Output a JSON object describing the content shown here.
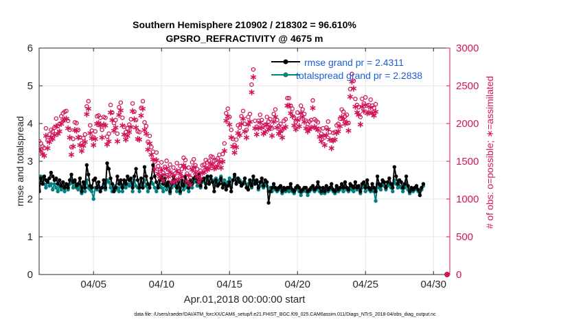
{
  "chart_data": {
    "type": "line",
    "title": "Southern Hemisphere 210902 / 218302 = 96.610%",
    "subtitle": "GPSRO_REFRACTIVITY @ 4675 m",
    "xlabel": "Apr.01,2018 00:00:00 start",
    "ylabel": "rmse and totalspread",
    "y2label": "# of obs: o=possible; ∗=assimilated",
    "footer": "data file: /Users/raeder/DAI/ATM_forcXX/CAM6_setup/f.e21.FHIST_BGC.f09_025.CAM6assim.011/Diags_NTrS_2018-04/obs_diag_output.nc",
    "xlim": [
      1.0,
      31.2
    ],
    "ylim": [
      0,
      6
    ],
    "y2lim": [
      0,
      3000
    ],
    "xticks": [
      5,
      10,
      15,
      20,
      25,
      30
    ],
    "xtick_labels": [
      "04/05",
      "04/10",
      "04/15",
      "04/20",
      "04/25",
      "04/30"
    ],
    "yticks": [
      0,
      1,
      2,
      3,
      4,
      5,
      6
    ],
    "y2ticks": [
      0,
      500,
      1000,
      1500,
      2000,
      2500,
      3000
    ],
    "grid": true,
    "legend_position": "top-right",
    "x_step_days": 0.125,
    "colors": {
      "rmse": "#000000",
      "spread": "#008080",
      "obs": "#d4145a"
    },
    "series": [
      {
        "name": "rmse grand pr = 2.4311",
        "kind": "rmse",
        "axis": "left",
        "x_start": 1.0,
        "values": [
          2.2,
          2.55,
          2.4,
          2.6,
          2.5,
          2.45,
          2.55,
          2.7,
          2.6,
          2.5,
          2.55,
          2.4,
          2.5,
          2.35,
          2.45,
          2.3,
          2.4,
          2.3,
          2.5,
          2.65,
          2.45,
          2.5,
          2.35,
          2.4,
          2.55,
          2.2,
          2.45,
          2.3,
          2.9,
          2.65,
          2.35,
          2.3,
          2.5,
          2.55,
          2.3,
          2.45,
          2.2,
          2.3,
          2.5,
          2.3,
          2.95,
          2.8,
          2.55,
          2.4,
          2.2,
          2.3,
          2.6,
          2.4,
          2.5,
          2.3,
          2.5,
          2.4,
          2.6,
          2.5,
          2.55,
          2.3,
          2.6,
          2.8,
          2.5,
          2.3,
          2.55,
          2.3,
          2.85,
          2.6,
          2.4,
          2.3,
          2.55,
          2.9,
          2.6,
          2.45,
          2.3,
          2.5,
          2.6,
          2.4,
          2.55,
          2.35,
          2.45,
          2.2,
          2.4,
          2.6,
          2.5,
          2.3,
          2.45,
          2.2,
          2.5,
          2.35,
          2.6,
          2.45,
          2.3,
          2.5,
          2.4,
          2.55,
          2.6,
          2.45,
          2.65,
          2.35,
          2.5,
          2.55,
          2.3,
          2.6,
          2.4,
          2.6,
          2.45,
          2.2,
          2.5,
          2.35,
          2.4,
          2.55,
          2.3,
          2.4,
          2.25,
          2.35,
          2.45,
          2.2,
          2.5,
          2.65,
          2.4,
          2.55,
          2.45,
          2.35,
          2.4,
          2.55,
          2.3,
          2.25,
          2.5,
          2.35,
          2.6,
          2.4,
          2.5,
          2.3,
          2.45,
          2.55,
          2.35,
          2.5,
          2.45,
          1.9,
          2.2,
          2.3,
          2.4,
          2.3,
          2.25,
          2.3,
          2.35,
          2.2,
          2.3,
          2.25,
          2.3,
          2.3,
          2.4,
          2.25,
          2.2,
          2.3,
          2.35,
          2.3,
          2.2,
          2.25,
          2.3,
          2.3,
          2.2,
          2.25,
          2.3,
          2.35,
          2.25,
          2.3,
          2.45,
          2.3,
          2.2,
          2.3,
          2.2,
          2.35,
          2.25,
          2.3,
          2.4,
          2.25,
          2.2,
          2.35,
          2.25,
          2.3,
          2.4,
          2.3,
          2.45,
          2.3,
          2.25,
          2.4,
          2.35,
          2.3,
          2.45,
          2.3,
          2.35,
          2.2,
          2.4,
          2.45,
          2.3,
          2.5,
          2.3,
          2.25,
          2.4,
          2.3,
          2.2,
          2.6,
          2.4,
          2.35,
          2.5,
          2.45,
          2.3,
          2.45,
          2.55,
          2.4,
          2.3,
          2.85,
          2.6,
          2.4,
          2.5,
          2.45,
          2.3,
          2.4,
          2.6,
          2.35,
          2.2,
          2.3,
          2.25,
          2.3,
          2.35,
          2.25,
          2.1,
          2.3,
          2.4
        ]
      },
      {
        "name": "totalspread grand pr = 2.2838",
        "kind": "spread",
        "axis": "left",
        "x_start": 1.0,
        "values": [
          2.25,
          2.6,
          2.55,
          2.4,
          2.3,
          2.5,
          2.35,
          2.4,
          2.25,
          2.4,
          2.3,
          2.2,
          2.35,
          2.25,
          2.3,
          2.2,
          2.35,
          2.25,
          2.4,
          2.5,
          2.3,
          2.45,
          2.3,
          2.25,
          2.35,
          2.15,
          2.3,
          2.2,
          2.5,
          2.3,
          2.25,
          2.2,
          2.0,
          2.3,
          2.25,
          2.35,
          2.2,
          2.3,
          2.4,
          2.25,
          2.5,
          2.45,
          2.3,
          2.2,
          2.35,
          2.25,
          2.3,
          2.2,
          2.4,
          2.2,
          2.35,
          2.3,
          2.4,
          2.35,
          2.45,
          2.2,
          2.5,
          2.35,
          2.3,
          2.2,
          2.4,
          2.3,
          2.5,
          2.35,
          2.2,
          2.3,
          2.45,
          2.4,
          2.3,
          2.2,
          2.35,
          2.4,
          2.3,
          2.2,
          2.4,
          2.25,
          2.35,
          2.15,
          2.3,
          2.45,
          2.35,
          2.2,
          2.3,
          2.15,
          2.4,
          2.25,
          2.45,
          2.3,
          2.2,
          2.35,
          2.3,
          2.45,
          2.5,
          2.35,
          2.55,
          2.3,
          2.45,
          2.5,
          2.4,
          2.55,
          2.45,
          2.6,
          2.5,
          2.4,
          2.55,
          2.45,
          2.5,
          2.6,
          2.4,
          2.5,
          2.35,
          2.45,
          2.55,
          2.3,
          2.5,
          2.6,
          2.45,
          2.55,
          2.5,
          2.4,
          2.45,
          2.55,
          2.3,
          2.4,
          2.45,
          2.3,
          2.5,
          2.4,
          2.45,
          2.25,
          2.35,
          2.45,
          2.3,
          2.4,
          2.35,
          2.2,
          2.3,
          2.2,
          2.3,
          2.25,
          2.2,
          2.25,
          2.3,
          2.15,
          2.25,
          2.2,
          2.25,
          2.2,
          2.3,
          2.2,
          2.15,
          2.25,
          2.3,
          2.2,
          2.1,
          2.2,
          2.25,
          2.2,
          2.1,
          2.2,
          2.25,
          2.3,
          2.2,
          2.25,
          2.35,
          2.2,
          2.15,
          2.25,
          2.15,
          2.3,
          2.2,
          2.25,
          2.3,
          2.2,
          2.15,
          2.3,
          2.2,
          2.25,
          2.3,
          2.2,
          2.35,
          2.25,
          2.2,
          2.3,
          2.25,
          2.2,
          2.35,
          2.25,
          2.3,
          2.15,
          2.3,
          2.35,
          2.2,
          2.4,
          2.25,
          2.2,
          2.3,
          2.2,
          1.95,
          2.4,
          2.3,
          2.25,
          2.4,
          2.35,
          2.25,
          2.35,
          2.4,
          2.3,
          2.2,
          2.5,
          2.4,
          2.3,
          2.35,
          2.3,
          2.2,
          2.3,
          2.45,
          2.25,
          2.15,
          2.25,
          2.2,
          2.25,
          2.3,
          2.2,
          2.1,
          2.25,
          2.35
        ]
      },
      {
        "name": "possible",
        "kind": "possible",
        "axis": "right",
        "x_start": 1.0,
        "values": [
          1730,
          1700,
          1660,
          1640,
          1900,
          1740,
          1820,
          1880,
          1860,
          1910,
          2030,
          1930,
          1960,
          2060,
          2100,
          2120,
          2130,
          2000,
          1880,
          1650,
          1760,
          1980,
          1970,
          1880,
          1780,
          1700,
          1770,
          1820,
          2190,
          2260,
          1940,
          1870,
          1780,
          1860,
          2060,
          2070,
          2040,
          1880,
          2050,
          2040,
          1790,
          1830,
          2210,
          2110,
          1970,
          2010,
          1830,
          2180,
          2240,
          2040,
          1920,
          1850,
          1900,
          1950,
          2020,
          2230,
          2120,
          2010,
          1860,
          1850,
          2170,
          2260,
          1980,
          1930,
          1720,
          1800,
          1650,
          1590,
          1460,
          1580,
          1400,
          1360,
          1450,
          1310,
          1390,
          1470,
          1360,
          1420,
          1290,
          1380,
          1300,
          1440,
          1330,
          1400,
          1360,
          1510,
          1480,
          1300,
          1380,
          1250,
          1450,
          1490,
          1410,
          1360,
          1290,
          1340,
          1410,
          1420,
          1480,
          1450,
          1470,
          1530,
          1520,
          1470,
          1480,
          1500,
          1550,
          1480,
          1560,
          1700,
          2100,
          2160,
          2050,
          1880,
          1760,
          1680,
          1750,
          1940,
          1910,
          2060,
          2130,
          1960,
          1880,
          2050,
          2090,
          2480,
          2680,
          2000,
          1920,
          2000,
          2080,
          2010,
          1930,
          1950,
          2050,
          1990,
          2020,
          1900,
          2090,
          2150,
          2010,
          1930,
          1960,
          1880,
          2000,
          2020,
          2300,
          2300,
          2200,
          2160,
          2040,
          1990,
          2110,
          2030,
          2200,
          2150,
          2090,
          2000,
          1960,
          1990,
          2010,
          2270,
          2020,
          2000,
          1980,
          1890,
          1830,
          1900,
          1780,
          1910,
          1990,
          1850,
          1740,
          1840,
          1850,
          1940,
          1960,
          2030,
          2150,
          2120,
          2060,
          2080,
          1970,
          2420,
          2620,
          2530,
          2290,
          2210,
          2180,
          2050,
          2290,
          2230,
          2310,
          2200,
          2210,
          2280,
          2200,
          2170,
          2220
        ]
      },
      {
        "name": "assimilated",
        "kind": "assimilated",
        "axis": "right",
        "x_start": 1.0,
        "values": [
          1710,
          1680,
          1640,
          1620,
          1880,
          1720,
          1800,
          1860,
          1840,
          1890,
          2010,
          1910,
          1940,
          2040,
          2080,
          2100,
          2110,
          1980,
          1860,
          1630,
          1740,
          1960,
          1950,
          1860,
          1760,
          1680,
          1750,
          1800,
          2170,
          2240,
          1920,
          1850,
          1760,
          1840,
          2040,
          2050,
          2020,
          1860,
          2030,
          2020,
          1770,
          1810,
          2190,
          2090,
          1950,
          1990,
          1810,
          2160,
          2220,
          2020,
          1900,
          1830,
          1880,
          1930,
          2000,
          2210,
          2100,
          1990,
          1840,
          1830,
          2150,
          2240,
          1960,
          1910,
          1700,
          1780,
          1630,
          1570,
          1440,
          1560,
          1380,
          1340,
          1430,
          1290,
          1370,
          1450,
          1340,
          1400,
          1270,
          1360,
          1280,
          1420,
          1310,
          1380,
          1340,
          1490,
          1460,
          1280,
          1360,
          1230,
          1430,
          1470,
          1390,
          1340,
          1270,
          1320,
          1390,
          1400,
          1460,
          1430,
          1450,
          1510,
          1500,
          1450,
          1460,
          1480,
          1530,
          1460,
          1540,
          1680,
          2080,
          2140,
          2030,
          1860,
          1740,
          1660,
          1730,
          1920,
          1890,
          2040,
          2110,
          1940,
          1860,
          2030,
          2070,
          2460,
          2660,
          1980,
          1900,
          1980,
          2060,
          1990,
          1910,
          1930,
          2030,
          1970,
          2000,
          1880,
          2070,
          2130,
          1990,
          1910,
          1940,
          1860,
          1980,
          2000,
          2280,
          2280,
          2180,
          2140,
          2020,
          1970,
          2090,
          2010,
          2180,
          2130,
          2070,
          1980,
          1940,
          1970,
          1990,
          2250,
          2000,
          1980,
          1960,
          1870,
          1810,
          1880,
          1760,
          1890,
          1970,
          1830,
          1720,
          1820,
          1830,
          1920,
          1940,
          2010,
          2130,
          2100,
          2040,
          2060,
          1950,
          2400,
          2600,
          2510,
          2270,
          2190,
          2160,
          2030,
          2270,
          2210,
          2290,
          2180,
          2190,
          2260,
          2180,
          2150,
          2200
        ]
      },
      {
        "name": "end marker",
        "kind": "endpoint",
        "axis": "right",
        "x": [
          31.0
        ],
        "values": [
          0
        ]
      }
    ]
  }
}
